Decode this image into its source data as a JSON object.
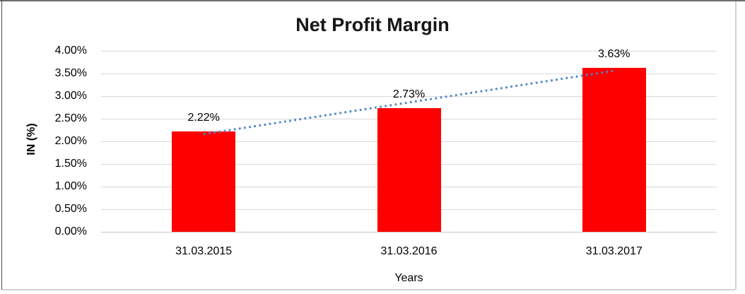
{
  "chart_data": {
    "type": "bar",
    "title": "Net Profit Margin",
    "xlabel": "Years",
    "ylabel": "IN (%)",
    "categories": [
      "31.03.2015",
      "31.03.2016",
      "31.03.2017"
    ],
    "values": [
      2.22,
      2.73,
      3.63
    ],
    "data_labels": [
      "2.22%",
      "2.73%",
      "3.63%"
    ],
    "ylim": [
      0,
      4
    ],
    "y_ticks": [
      {
        "label": "4.00%",
        "value": 4.0
      },
      {
        "label": "3.50%",
        "value": 3.5
      },
      {
        "label": "3.00%",
        "value": 3.0
      },
      {
        "label": "2.50%",
        "value": 2.5
      },
      {
        "label": "2.00%",
        "value": 2.0
      },
      {
        "label": "1.50%",
        "value": 1.5
      },
      {
        "label": "1.00%",
        "value": 1.0
      },
      {
        "label": "0.50%",
        "value": 0.5
      },
      {
        "label": "0.00%",
        "value": 0.0
      }
    ],
    "grid": true,
    "legend": false,
    "bar_color": "#ff0000",
    "gridline_color": "#d9d9d9",
    "text_color": "#000000",
    "trendline": {
      "type": "linear",
      "style": "dotted",
      "color": "#4e86c6",
      "start_value": 2.16,
      "end_value": 3.56
    }
  }
}
